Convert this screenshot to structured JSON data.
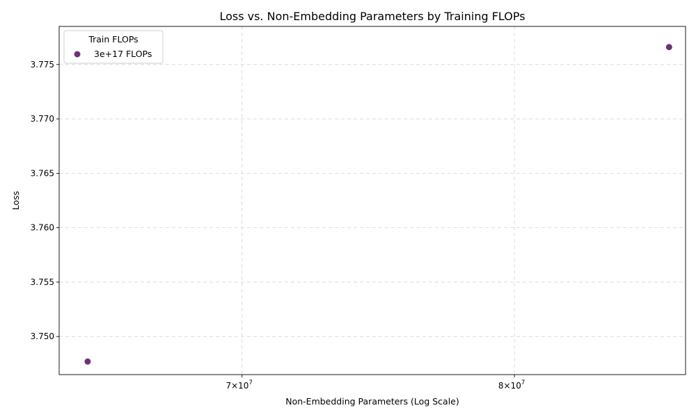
{
  "chart_data": {
    "type": "scatter",
    "title": "Loss vs. Non-Embedding Parameters by Training FLOPs",
    "xlabel": "Non-Embedding Parameters (Log Scale)",
    "ylabel": "Loss",
    "xscale": "log",
    "xlim": [
      64000000,
      87000000
    ],
    "ylim": [
      3.7465,
      3.7785
    ],
    "x_ticks": [
      {
        "value": 70000000,
        "base": "7×10",
        "exp": "7"
      },
      {
        "value": 80000000,
        "base": "8×10",
        "exp": "7"
      }
    ],
    "y_ticks": [
      {
        "value": 3.75,
        "label": "3.750"
      },
      {
        "value": 3.755,
        "label": "3.755"
      },
      {
        "value": 3.76,
        "label": "3.760"
      },
      {
        "value": 3.765,
        "label": "3.765"
      },
      {
        "value": 3.77,
        "label": "3.770"
      },
      {
        "value": 3.775,
        "label": "3.775"
      }
    ],
    "grid": true,
    "legend": {
      "title": "Train FLOPs",
      "placement": "top-left"
    },
    "series": [
      {
        "name": "3e+17 FLOPs",
        "color": "#440154",
        "points": [
          {
            "x": 64900000,
            "y": 3.7477
          },
          {
            "x": 86300000,
            "y": 3.7766
          }
        ]
      }
    ]
  }
}
